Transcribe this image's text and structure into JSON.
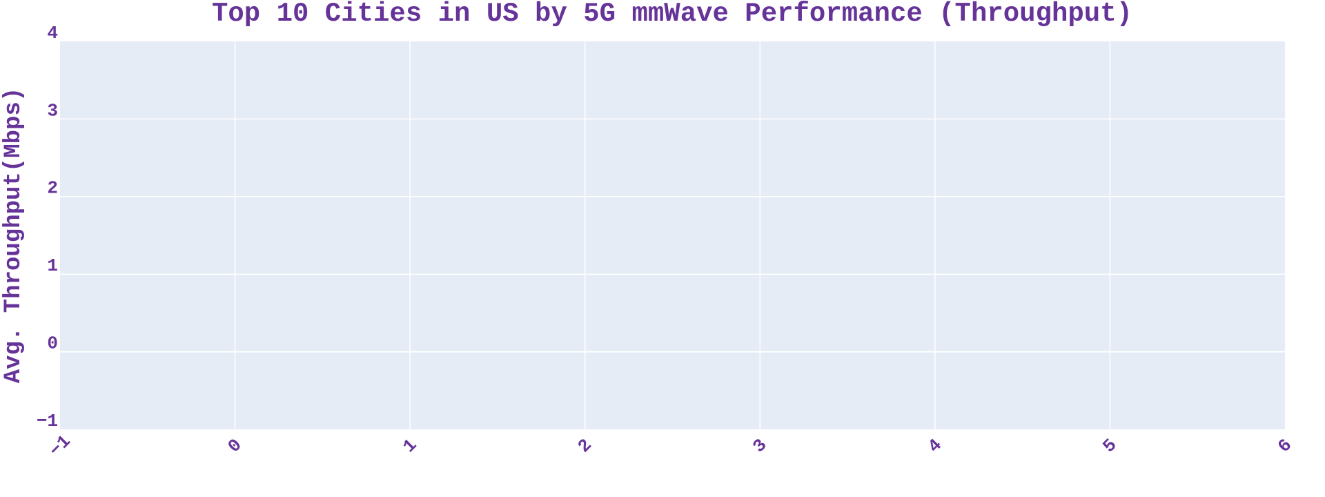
{
  "colors": {
    "text": "#663399",
    "plot_background": "#E5ECF6",
    "grid": "#FFFFFF",
    "page_background": "#FFFFFF"
  },
  "chart_data": {
    "type": "bar",
    "title": "Top 10 Cities in US by 5G mmWave Performance (Throughput)",
    "xlabel": "",
    "ylabel": "Avg. Throughput(Mbps)",
    "xlim": [
      -1,
      6
    ],
    "ylim": [
      -1,
      4
    ],
    "x_ticks": [
      -1,
      0,
      1,
      2,
      3,
      4,
      5,
      6
    ],
    "x_tick_labels": [
      "−1",
      "0",
      "1",
      "2",
      "3",
      "4",
      "5",
      "6"
    ],
    "y_ticks": [
      -1,
      0,
      1,
      2,
      3,
      4
    ],
    "y_tick_labels": [
      "−1",
      "0",
      "1",
      "2",
      "3",
      "4"
    ],
    "x_tick_rotation_deg": -45,
    "categories": [],
    "values": [],
    "grid": true,
    "legend": "none"
  }
}
